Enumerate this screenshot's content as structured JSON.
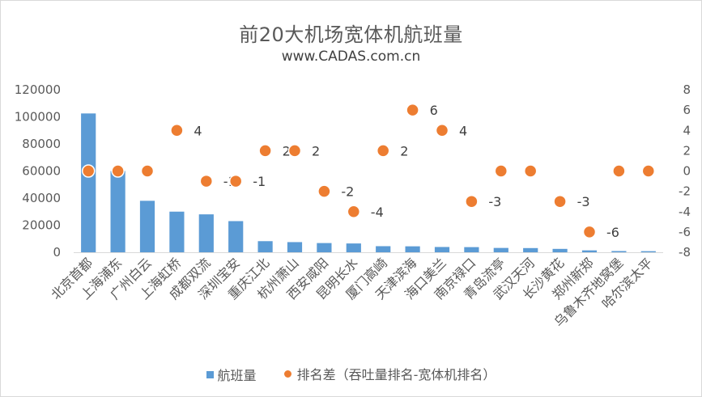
{
  "chart_data": {
    "type": "bar",
    "title": "前20大机场宽体机航班量",
    "subtitle": "www.CADAS.com.cn",
    "categories": [
      "北京首都",
      "上海浦东",
      "广州白云",
      "上海虹桥",
      "成都双流",
      "深圳宝安",
      "重庆江北",
      "杭州萧山",
      "西安咸阳",
      "昆明长水",
      "厦门高崎",
      "天津滨海",
      "海口美兰",
      "南京禄口",
      "青岛流亭",
      "武汉天河",
      "长沙黄花",
      "郑州新郑",
      "乌鲁木齐地窝堡",
      "哈尔滨太平"
    ],
    "series": [
      {
        "name": "航班量",
        "type": "bar",
        "axis": "left",
        "color": "#5b9bd5",
        "values": [
          102500,
          60000,
          38000,
          30000,
          28000,
          23000,
          8200,
          7500,
          6800,
          6500,
          4500,
          4400,
          3900,
          3800,
          3200,
          3100,
          2500,
          1400,
          900,
          800
        ]
      },
      {
        "name": "排名差（吞吐量排名-宽体机排名）",
        "type": "scatter",
        "axis": "right",
        "color": "#ed7d31",
        "values": [
          0,
          0,
          0,
          4,
          -1,
          -1,
          2,
          2,
          -2,
          -4,
          2,
          6,
          4,
          -3,
          0,
          0,
          -3,
          -6,
          0,
          0
        ],
        "point_labels": [
          "",
          "",
          "",
          "4",
          "-1",
          "-1",
          "2",
          "2",
          "-2",
          "-4",
          "2",
          "6",
          "4",
          "-3",
          "",
          "",
          "-3",
          "-6",
          "",
          ""
        ]
      }
    ],
    "yleft": {
      "ylim": [
        0,
        120000
      ],
      "ticks": [
        0,
        20000,
        40000,
        60000,
        80000,
        100000,
        120000
      ],
      "tick_labels": [
        "0",
        "20000",
        "40000",
        "60000",
        "80000",
        "100000",
        "120000"
      ]
    },
    "yright": {
      "ylim": [
        -8,
        8
      ],
      "ticks": [
        -8,
        -6,
        -4,
        -2,
        0,
        2,
        4,
        6,
        8
      ],
      "tick_labels": [
        "-8",
        "-6",
        "-4",
        "-2",
        "0",
        "2",
        "4",
        "6",
        "8"
      ]
    },
    "grid": false,
    "legend": "bottom"
  }
}
